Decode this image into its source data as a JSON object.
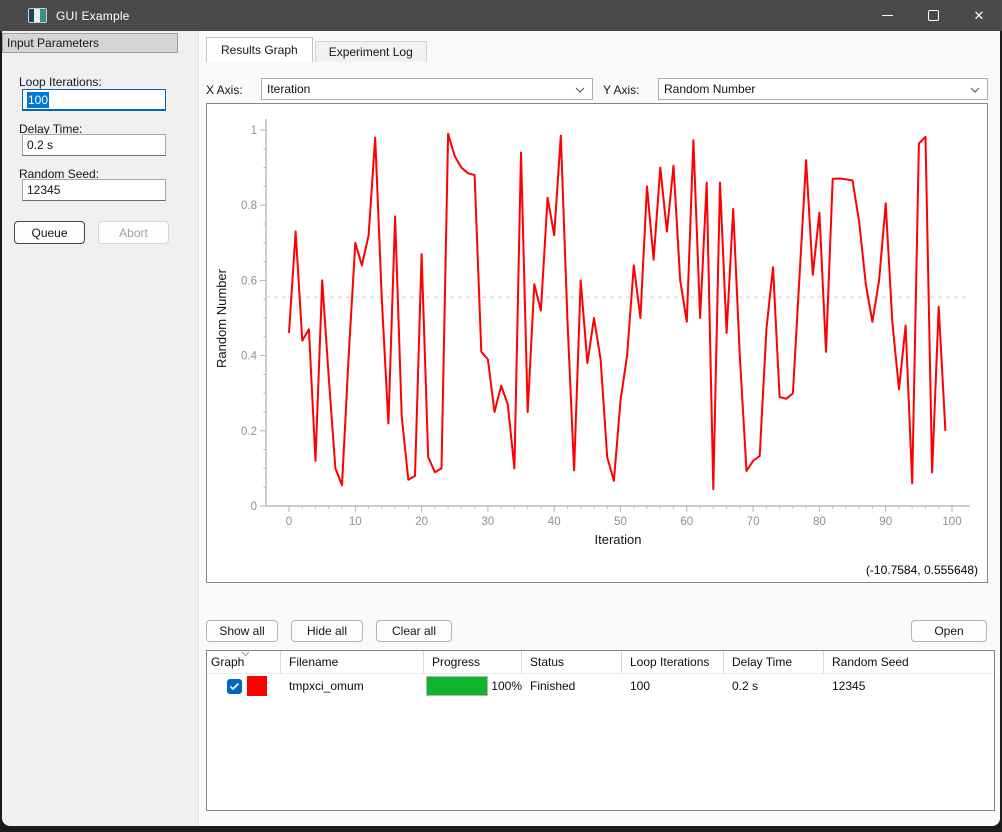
{
  "window": {
    "title": "GUI Example"
  },
  "sidebar": {
    "header": "Input Parameters",
    "fields": [
      {
        "label": "Loop Iterations:",
        "value": "100",
        "focused": true,
        "selected": true
      },
      {
        "label": "Delay Time:",
        "value": "0.2 s"
      },
      {
        "label": "Random Seed:",
        "value": "12345"
      }
    ],
    "queue_label": "Queue",
    "abort_label": "Abort"
  },
  "tabs": [
    {
      "label": "Results Graph",
      "active": true
    },
    {
      "label": "Experiment Log",
      "active": false
    }
  ],
  "axis_controls": {
    "x_label": "X Axis:",
    "x_value": "Iteration",
    "y_label": "Y Axis:",
    "y_value": "Random Number"
  },
  "chart_data": {
    "type": "line",
    "title": "",
    "xlabel": "Iteration",
    "ylabel": "Random Number",
    "xlim": [
      -4,
      103
    ],
    "ylim": [
      0,
      1
    ],
    "x_ticks": [
      0,
      10,
      20,
      30,
      40,
      50,
      60,
      70,
      80,
      90,
      100
    ],
    "y_ticks": [
      0,
      0.2,
      0.4,
      0.6,
      0.8,
      1
    ],
    "grid": false,
    "legend": "none",
    "mean_line": {
      "value": 0.555648,
      "style": "dashed",
      "color": "#cdcdcd"
    },
    "series": [
      {
        "name": "tmpxci_omum",
        "color": "#ff0000",
        "x_start": 0,
        "x_step": 1,
        "values": [
          0.46,
          0.73,
          0.44,
          0.47,
          0.12,
          0.6,
          0.34,
          0.1,
          0.055,
          0.4,
          0.7,
          0.64,
          0.72,
          0.98,
          0.55,
          0.22,
          0.77,
          0.24,
          0.07,
          0.08,
          0.67,
          0.13,
          0.09,
          0.1,
          0.99,
          0.93,
          0.9,
          0.885,
          0.88,
          0.41,
          0.39,
          0.25,
          0.32,
          0.27,
          0.1,
          0.94,
          0.25,
          0.59,
          0.52,
          0.82,
          0.72,
          0.985,
          0.49,
          0.095,
          0.6,
          0.38,
          0.5,
          0.39,
          0.13,
          0.067,
          0.28,
          0.4,
          0.64,
          0.5,
          0.85,
          0.655,
          0.9,
          0.73,
          0.905,
          0.6,
          0.49,
          0.973,
          0.5,
          0.86,
          0.045,
          0.86,
          0.46,
          0.79,
          0.4,
          0.093,
          0.12,
          0.133,
          0.47,
          0.635,
          0.29,
          0.285,
          0.3,
          0.61,
          0.92,
          0.615,
          0.78,
          0.41,
          0.87,
          0.871,
          0.869,
          0.866,
          0.755,
          0.59,
          0.49,
          0.6,
          0.805,
          0.49,
          0.31,
          0.48,
          0.06,
          0.964,
          0.982,
          0.089,
          0.53,
          0.2
        ]
      }
    ]
  },
  "plot": {
    "coords_text": "(-10.7584, 0.555648)"
  },
  "actions": {
    "show_all": "Show all",
    "hide_all": "Hide all",
    "clear_all": "Clear all",
    "open": "Open"
  },
  "table": {
    "columns": [
      "Graph",
      "Filename",
      "Progress",
      "Status",
      "Loop Iterations",
      "Delay Time",
      "Random Seed"
    ],
    "rows": [
      {
        "graph_checked": true,
        "color": "#ff0000",
        "filename": "tmpxci_omum",
        "progress": 100,
        "progress_label": "100%",
        "status": "Finished",
        "loop_iterations": "100",
        "delay_time": "0.2 s",
        "random_seed": "12345"
      }
    ]
  },
  "colors": {
    "titlebar": "#4a4a4a",
    "accent_blue": "#0067c0",
    "selection_blue": "#0078d4",
    "line_red": "#ff0000",
    "progress_green": "#0fb42c",
    "axis_gray": "#9a9a9a",
    "tick_label_gray": "#8f8f8f"
  }
}
